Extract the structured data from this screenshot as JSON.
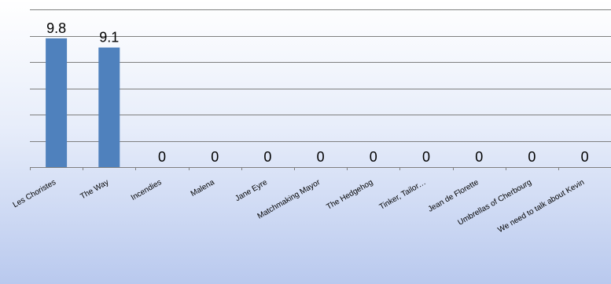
{
  "chart_data": {
    "type": "bar",
    "categories": [
      "Les Choristes",
      "The Way",
      "Incendies",
      "Malena",
      "Jane Eyre",
      "Matchmaking Mayor",
      "The Hedgehog",
      "Tinker, Tailor…",
      "Jean de Florette",
      "Umbrellas of Cherbourg",
      "We need to talk about Kevin"
    ],
    "values": [
      9.8,
      9.1,
      0,
      0,
      0,
      0,
      0,
      0,
      0,
      0,
      0
    ],
    "data_labels": [
      "9.8",
      "9.1",
      "0",
      "0",
      "0",
      "0",
      "0",
      "0",
      "0",
      "0",
      "0"
    ],
    "ylim": [
      0,
      12
    ],
    "grid": true,
    "legend": "none",
    "bar_color": "#4F81BD",
    "grid_color": "#7F7F7F",
    "background_top": "#FFFFFF",
    "background_bottom": "#B9C9EE"
  }
}
